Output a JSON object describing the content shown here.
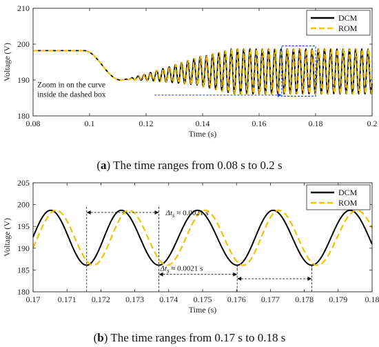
{
  "chart_data": [
    {
      "id": "panel-a",
      "type": "line",
      "xlabel": "Time (s)",
      "ylabel": "Voltage (V)",
      "xlim": [
        0.08,
        0.2
      ],
      "ylim": [
        180,
        210
      ],
      "xticks": [
        0.08,
        0.1,
        0.12,
        0.14,
        0.16,
        0.18,
        0.2
      ],
      "yticks": [
        180,
        190,
        200,
        210
      ],
      "xtick_labels": [
        "0.08",
        "0.1",
        "0.12",
        "0.14",
        "0.16",
        "0.18",
        "0.2"
      ],
      "ytick_labels": [
        "180",
        "190",
        "200",
        "210"
      ],
      "legend_position": "top-right",
      "series": [
        {
          "name": "DCM",
          "color": "#000000",
          "style": "solid",
          "description_points": [
            [
              0.08,
              198.2
            ],
            [
              0.098,
              198.2
            ],
            [
              0.1,
              197.0
            ],
            [
              0.111,
              190.0
            ],
            [
              0.115,
              190.6
            ],
            [
              0.13,
              192.2
            ],
            [
              0.14,
              193.0
            ],
            [
              0.15,
              192.0
            ],
            [
              0.16,
              192.0
            ],
            [
              0.2,
              192.0
            ]
          ]
        },
        {
          "name": "ROM",
          "color": "#f2c200",
          "style": "dashed",
          "description_points": [
            [
              0.08,
              198.2
            ],
            [
              0.098,
              198.2
            ],
            [
              0.1,
              197.0
            ],
            [
              0.111,
              190.0
            ],
            [
              0.115,
              190.6
            ],
            [
              0.13,
              192.2
            ],
            [
              0.14,
              193.0
            ],
            [
              0.15,
              192.0
            ],
            [
              0.16,
              192.0
            ],
            [
              0.2,
              192.0
            ]
          ]
        }
      ],
      "zoom_box": {
        "x": [
          0.168,
          0.18
        ],
        "y": [
          185.5,
          199.5
        ]
      },
      "annotation": {
        "text_line1": "Zoom in on the curve",
        "text_line2": "inside the dashed box",
        "arrow_from_x": 0.123,
        "arrow_to_x": 0.168,
        "arrow_y": 185.8
      }
    },
    {
      "id": "panel-b",
      "type": "line",
      "xlabel": "Time (s)",
      "ylabel": "Voltage (V)",
      "xlim": [
        0.17,
        0.18
      ],
      "ylim": [
        180,
        205
      ],
      "xticks": [
        0.17,
        0.171,
        0.172,
        0.173,
        0.174,
        0.175,
        0.176,
        0.177,
        0.178,
        0.179,
        0.18
      ],
      "yticks": [
        180,
        185,
        190,
        195,
        200,
        205
      ],
      "xtick_labels": [
        "0.17",
        "0.171",
        "0.172",
        "0.173",
        "0.174",
        "0.175",
        "0.176",
        "0.177",
        "0.178",
        "0.179",
        "0.18"
      ],
      "ytick_labels": [
        "180",
        "185",
        "190",
        "195",
        "200",
        "205"
      ],
      "legend_position": "top-right",
      "series": [
        {
          "name": "DCM",
          "color": "#000000",
          "style": "solid",
          "minima_x": [
            0.17158,
            0.17371,
            0.17602,
            0.17822
          ],
          "maxima_x": [
            0.17052,
            0.1726,
            0.17485,
            0.17708,
            0.17935
          ],
          "amplitude": 6.3,
          "mean": 192.4
        },
        {
          "name": "ROM",
          "color": "#f2c200",
          "style": "dashed",
          "minima_x": [
            0.17178,
            0.17395,
            0.1762,
            0.17838
          ],
          "maxima_x": [
            0.17068,
            0.17283,
            0.17507,
            0.17725,
            0.17955
          ],
          "amplitude": 6.3,
          "mean": 192.4
        }
      ],
      "annotations": [
        {
          "label_prefix": "Δ",
          "label_var": "t",
          "label_sub": "s",
          "label_value": " ≈ 0.0021 s",
          "x1": 0.17158,
          "x2": 0.17371,
          "y": 198.2,
          "label_at": "right"
        },
        {
          "label_prefix": "Δ",
          "label_var": "t",
          "label_sub": "s",
          "label_value": " ≈ 0.0021 s",
          "x1": 0.17371,
          "x2": 0.17602,
          "y": 184.0,
          "label_at": "above"
        },
        {
          "x1": 0.17602,
          "x2": 0.17822,
          "y": 183.0
        }
      ]
    }
  ],
  "captions": {
    "a_letter": "a",
    "a_text": " The time ranges from 0.08 s to 0.2 s",
    "b_letter": "b",
    "b_text": " The time ranges from 0.17 s to 0.18 s"
  }
}
